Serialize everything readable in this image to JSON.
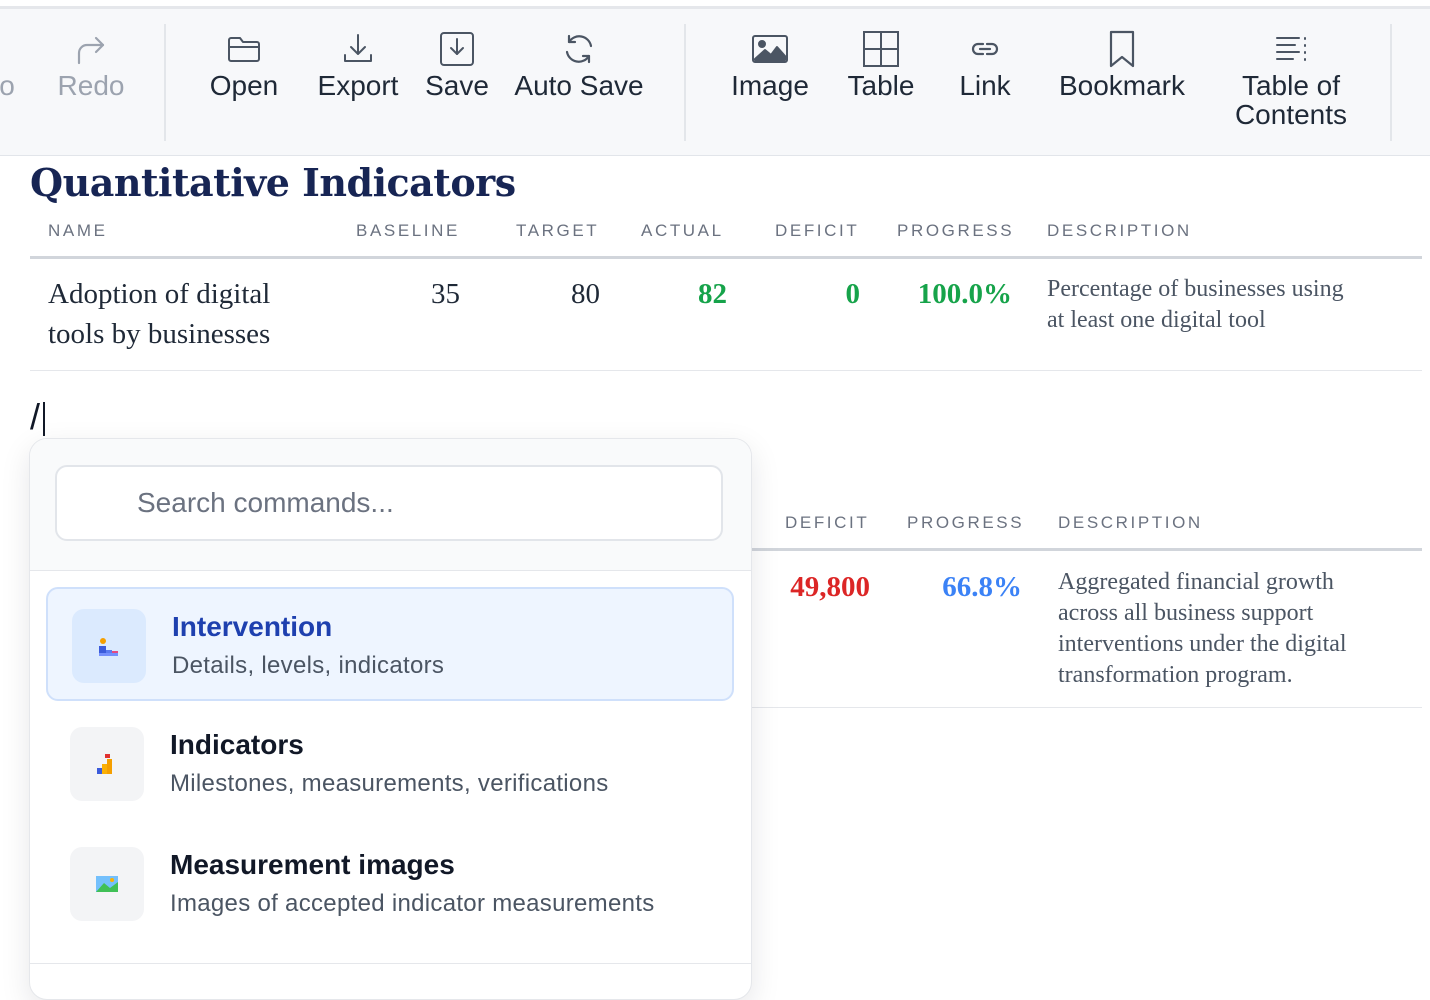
{
  "toolbar": {
    "undo_partial": "o",
    "redo": "Redo",
    "open": "Open",
    "export": "Export",
    "save": "Save",
    "auto_save": "Auto Save",
    "image": "Image",
    "table": "Table",
    "link": "Link",
    "bookmark": "Bookmark",
    "toc_line1": "Table of",
    "toc_line2": "Contents"
  },
  "section": {
    "title": "Quantitative Indicators"
  },
  "table1": {
    "headers": {
      "name": "NAME",
      "baseline": "BASELINE",
      "target": "TARGET",
      "actual": "ACTUAL",
      "deficit": "DEFICIT",
      "progress": "PROGRESS",
      "description": "DESCRIPTION"
    },
    "row": {
      "name_line1": "Adoption of digital",
      "name_line2": "tools by businesses",
      "baseline": "35",
      "target": "80",
      "actual": "82",
      "deficit": "0",
      "progress": "100.0%",
      "desc_line1": "Percentage of businesses using",
      "desc_line2": "at least one digital tool"
    }
  },
  "editor": {
    "slash": "/"
  },
  "table2": {
    "headers": {
      "deficit": "DEFICIT",
      "progress": "PROGRESS",
      "description": "DESCRIPTION"
    },
    "row": {
      "deficit": "49,800",
      "progress": "66.8%",
      "desc_line1": "Aggregated financial growth",
      "desc_line2": "across all business support",
      "desc_line3": "interventions under the digital",
      "desc_line4": "transformation program."
    }
  },
  "command_menu": {
    "search_placeholder": "Search commands...",
    "items": [
      {
        "title": "Intervention",
        "subtitle": "Details, levels, indicators",
        "icon": "intervention-icon"
      },
      {
        "title": "Indicators",
        "subtitle": "Milestones, measurements, verifications",
        "icon": "indicators-icon"
      },
      {
        "title": "Measurement images",
        "subtitle": "Images of accepted indicator measurements",
        "icon": "measurement-images-icon"
      }
    ]
  },
  "colors": {
    "positive": "#16a34a",
    "negative": "#dc2626",
    "progress_partial": "#3b82f6",
    "title": "#172554",
    "active_item": "#1e40af"
  }
}
